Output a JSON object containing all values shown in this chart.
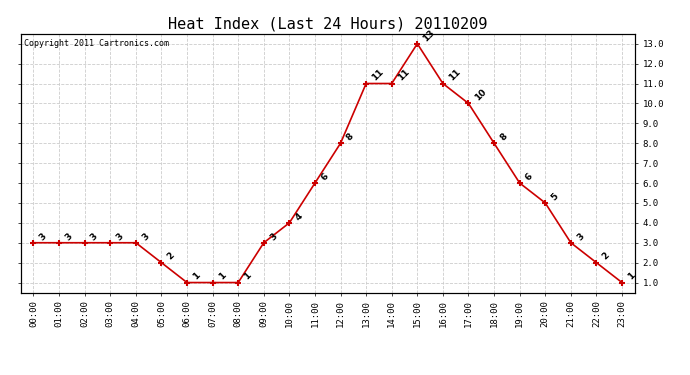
{
  "title": "Heat Index (Last 24 Hours) 20110209",
  "copyright": "Copyright 2011 Cartronics.com",
  "hours": [
    "00:00",
    "01:00",
    "02:00",
    "03:00",
    "04:00",
    "05:00",
    "06:00",
    "07:00",
    "08:00",
    "09:00",
    "10:00",
    "11:00",
    "12:00",
    "13:00",
    "14:00",
    "15:00",
    "16:00",
    "17:00",
    "18:00",
    "19:00",
    "20:00",
    "21:00",
    "22:00",
    "23:00"
  ],
  "values": [
    3,
    3,
    3,
    3,
    3,
    2,
    1,
    1,
    1,
    3,
    4,
    6,
    8,
    11,
    11,
    13,
    11,
    10,
    8,
    6,
    5,
    3,
    2,
    1
  ],
  "line_color": "#cc0000",
  "marker_color": "#cc0000",
  "grid_color": "#cccccc",
  "bg_color": "#ffffff",
  "ylim_min": 1.0,
  "ylim_max": 13.0,
  "title_fontsize": 11,
  "label_fontsize": 6.5,
  "annotation_fontsize": 6.5,
  "copyright_fontsize": 6.0
}
